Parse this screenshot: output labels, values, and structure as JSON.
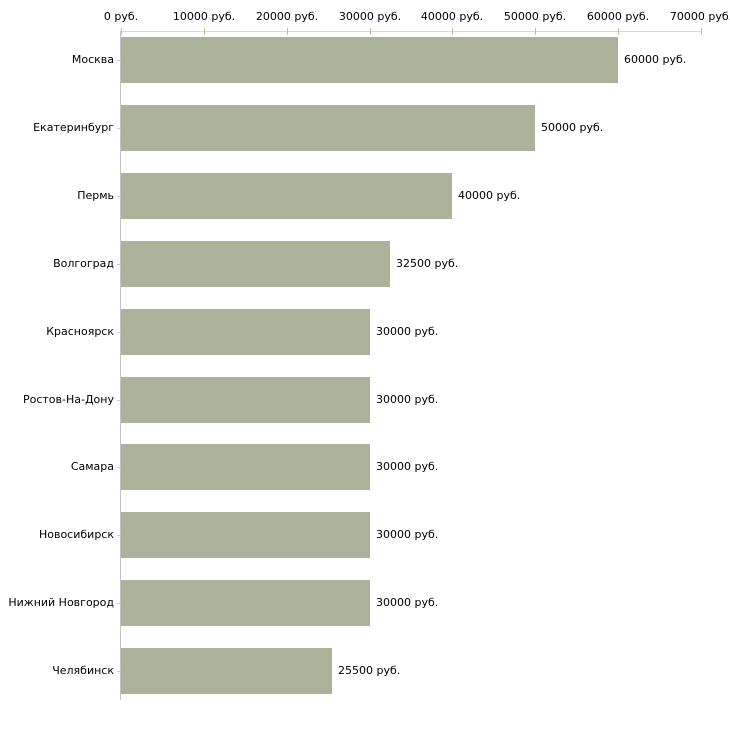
{
  "chart_data": {
    "type": "bar",
    "orientation": "horizontal",
    "title": "",
    "xlabel": "",
    "ylabel": "",
    "xlim": [
      0,
      70000
    ],
    "grid": false,
    "legend": false,
    "x_ticks": [
      0,
      10000,
      20000,
      30000,
      40000,
      50000,
      60000,
      70000
    ],
    "x_tick_labels": [
      "0 руб.",
      "10000 руб.",
      "20000 руб.",
      "30000 руб.",
      "40000 руб.",
      "50000 руб.",
      "60000 руб.",
      "70000 руб."
    ],
    "categories": [
      "Москва",
      "Екатеринбург",
      "Пермь",
      "Волгоград",
      "Красноярск",
      "Ростов-На-Дону",
      "Самара",
      "Новосибирск",
      "Нижний Новгород",
      "Челябинск"
    ],
    "values": [
      60000,
      50000,
      40000,
      32500,
      30000,
      30000,
      30000,
      30000,
      30000,
      25500
    ],
    "value_labels": [
      "60000 руб.",
      "50000 руб.",
      "40000 руб.",
      "32500 руб.",
      "30000 руб.",
      "30000 руб.",
      "30000 руб.",
      "30000 руб.",
      "30000 руб.",
      "25500 руб."
    ],
    "colors": {
      "bar_fill": "#abb299",
      "axis_line": "#d9d9c7",
      "tick_mark": "#bcbc9e",
      "y_axis_line": "#c3c3c3",
      "text": "#000000",
      "background": "#ffffff"
    }
  }
}
